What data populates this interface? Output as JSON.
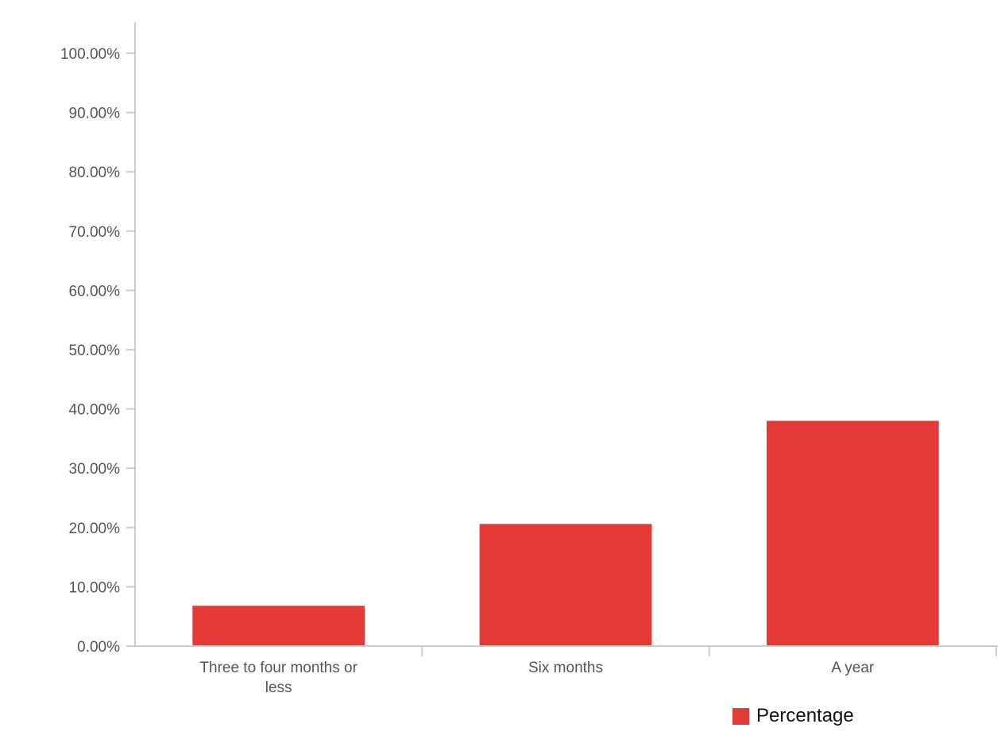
{
  "chart_data": {
    "type": "bar",
    "categories": [
      "Three to four months or less",
      "Six months",
      "A year"
    ],
    "category_label_lines": [
      [
        "Three to four months or",
        "less"
      ],
      [
        "Six months"
      ],
      [
        "A year"
      ]
    ],
    "series": [
      {
        "name": "Percentage",
        "values": [
          6.8,
          20.6,
          38.0
        ],
        "color": "#e53935"
      }
    ],
    "y_ticks": [
      "0.00%",
      "10.00%",
      "20.00%",
      "30.00%",
      "40.00%",
      "50.00%",
      "60.00%",
      "70.00%",
      "80.00%",
      "90.00%",
      "100.00%"
    ],
    "ylim": [
      0,
      100
    ],
    "legend_position": "bottom-right",
    "grid": false
  },
  "legend": {
    "label": "Percentage"
  }
}
